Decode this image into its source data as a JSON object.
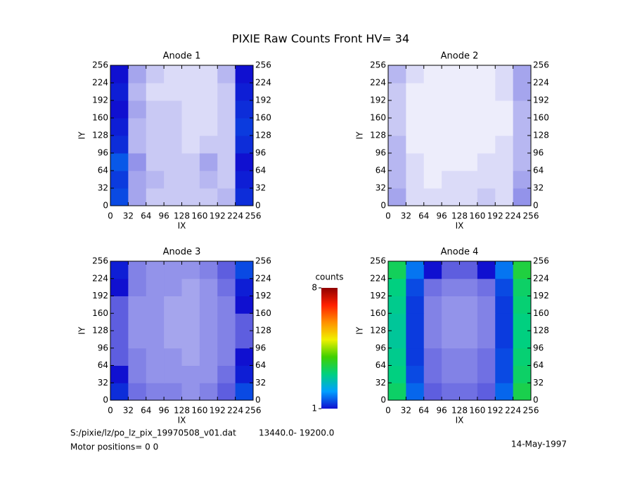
{
  "chart_data": {
    "type": "heatmap",
    "title": "PIXIE Raw Counts Front HV= 34",
    "xlabel": "IX",
    "ylabel": "IY",
    "xlim": [
      0,
      256
    ],
    "ylim": [
      0,
      256
    ],
    "xticks": [
      0,
      32,
      64,
      96,
      128,
      160,
      192,
      224,
      256
    ],
    "yticks": [
      0,
      32,
      64,
      96,
      128,
      160,
      192,
      224,
      256
    ],
    "colorbar_label": "counts",
    "clim": [
      1,
      8
    ],
    "cticks": [
      1,
      8
    ],
    "colors": [
      "#1010d0",
      "#00a0ff",
      "#00d080",
      "#40d000",
      "#f0f000",
      "#ff9000",
      "#ff2000",
      "#900000"
    ],
    "panels": [
      {
        "title": "Anode 1",
        "z": [
          [
            1.4,
            0.5,
            0.3,
            0.3,
            0.3,
            0.3,
            0.4,
            1.2
          ],
          [
            1.3,
            0.5,
            0.4,
            0.3,
            0.3,
            0.4,
            0.3,
            1.1
          ],
          [
            1.5,
            0.6,
            0.3,
            0.3,
            0.3,
            0.5,
            0.3,
            1.0
          ],
          [
            1.2,
            0.4,
            0.3,
            0.3,
            0.2,
            0.3,
            0.3,
            1.2
          ],
          [
            1.1,
            0.4,
            0.3,
            0.3,
            0.2,
            0.2,
            0.3,
            1.3
          ],
          [
            1.0,
            0.5,
            0.3,
            0.3,
            0.2,
            0.2,
            0.3,
            1.2
          ],
          [
            1.1,
            0.4,
            0.2,
            0.2,
            0.2,
            0.2,
            0.3,
            1.1
          ],
          [
            1.0,
            0.5,
            0.3,
            0.2,
            0.2,
            0.2,
            0.4,
            1.0
          ]
        ]
      },
      {
        "title": "Anode 2",
        "z": [
          [
            0.5,
            0.2,
            0.2,
            0.2,
            0.2,
            0.3,
            0.2,
            0.6
          ],
          [
            0.4,
            0.2,
            0.1,
            0.2,
            0.2,
            0.2,
            0.2,
            0.5
          ],
          [
            0.4,
            0.2,
            0.1,
            0.1,
            0.1,
            0.2,
            0.2,
            0.4
          ],
          [
            0.4,
            0.1,
            0.1,
            0.1,
            0.1,
            0.1,
            0.2,
            0.4
          ],
          [
            0.3,
            0.1,
            0.1,
            0.1,
            0.1,
            0.1,
            0.1,
            0.4
          ],
          [
            0.3,
            0.1,
            0.1,
            0.1,
            0.1,
            0.1,
            0.1,
            0.4
          ],
          [
            0.3,
            0.1,
            0.1,
            0.1,
            0.1,
            0.1,
            0.2,
            0.5
          ],
          [
            0.4,
            0.2,
            0.1,
            0.1,
            0.1,
            0.1,
            0.2,
            0.5
          ]
        ]
      },
      {
        "title": "Anode 3",
        "z": [
          [
            1.2,
            0.8,
            0.7,
            0.7,
            0.6,
            0.7,
            0.9,
            1.4
          ],
          [
            1.0,
            0.7,
            0.6,
            0.6,
            0.6,
            0.6,
            0.8,
            1.1
          ],
          [
            0.9,
            0.7,
            0.6,
            0.6,
            0.5,
            0.6,
            0.7,
            1.0
          ],
          [
            0.9,
            0.6,
            0.6,
            0.5,
            0.5,
            0.6,
            0.7,
            0.9
          ],
          [
            0.9,
            0.6,
            0.6,
            0.5,
            0.5,
            0.6,
            0.7,
            0.9
          ],
          [
            0.9,
            0.6,
            0.6,
            0.5,
            0.5,
            0.6,
            0.7,
            1.0
          ],
          [
            1.0,
            0.7,
            0.6,
            0.6,
            0.5,
            0.6,
            0.8,
            1.1
          ],
          [
            1.1,
            0.7,
            0.6,
            0.6,
            0.6,
            0.7,
            0.9,
            1.4
          ]
        ]
      },
      {
        "title": "Anode 4",
        "z": [
          [
            3.2,
            1.6,
            0.9,
            0.8,
            0.8,
            0.9,
            1.6,
            3.4
          ],
          [
            3.0,
            1.4,
            0.8,
            0.7,
            0.7,
            0.8,
            1.4,
            3.2
          ],
          [
            2.9,
            1.3,
            0.8,
            0.7,
            0.7,
            0.8,
            1.4,
            3.1
          ],
          [
            2.8,
            1.3,
            0.7,
            0.6,
            0.6,
            0.7,
            1.3,
            3.0
          ],
          [
            2.8,
            1.3,
            0.7,
            0.6,
            0.6,
            0.7,
            1.3,
            3.0
          ],
          [
            2.9,
            1.3,
            0.7,
            0.6,
            0.6,
            0.7,
            1.3,
            3.1
          ],
          [
            3.0,
            1.4,
            0.8,
            0.7,
            0.7,
            0.8,
            1.4,
            3.2
          ],
          [
            3.3,
            1.7,
            1.0,
            0.9,
            0.9,
            1.0,
            1.7,
            3.5
          ]
        ]
      }
    ]
  },
  "footer": {
    "file": "S:/pixie/lz/po_lz_pix_19970508_v01.dat",
    "range": "13440.0- 19200.0",
    "motor": "Motor positions= 0 0",
    "date": "14-May-1997"
  }
}
